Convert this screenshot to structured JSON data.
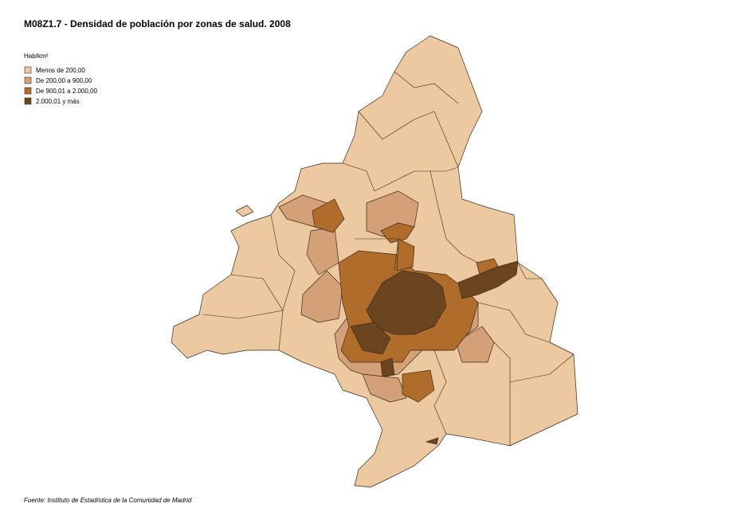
{
  "header": {
    "title": "M08Z1.7 - Densidad de población por zonas de salud. 2008"
  },
  "legend": {
    "title": "Hab/km²",
    "items": [
      {
        "label": "Menos de 200,00",
        "color": "#ecc9a1"
      },
      {
        "label": "De 200,00 a 900,00",
        "color": "#d4a077"
      },
      {
        "label": "De 900,01 a 2.000,00",
        "color": "#b06c2a"
      },
      {
        "label": "2.000,01 y más",
        "color": "#6b4420"
      }
    ]
  },
  "footer": {
    "source": "Fuente: Instituto de Estadística de la Comunidad de Madrid"
  }
}
